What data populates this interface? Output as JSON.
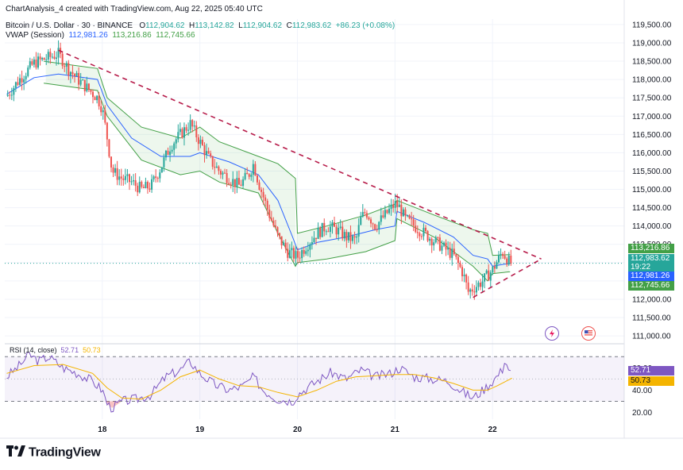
{
  "header": {
    "credit": "ChartAnalysis_4 created with TradingView.com, Aug 22, 2025 05:40 UTC",
    "symbol": "Bitcoin / U.S. Dollar · 30 · BINANCE",
    "open_label": "O",
    "open": "112,904.62",
    "high_label": "H",
    "high": "113,142.82",
    "low_label": "L",
    "low": "112,904.62",
    "close_label": "C",
    "close": "112,983.62",
    "change": "+86.23 (+0.08%)",
    "vwap_label": "VWAP (Session)",
    "vwap": "112,981.26",
    "vwap_upper": "113,216.86",
    "vwap_lower": "112,745.66"
  },
  "price_tags": {
    "upper": "113,216.86",
    "close": "112,983.62",
    "countdown": "19:22",
    "vwap": "112,981.26",
    "lower": "112,745.66"
  },
  "rsi_header": {
    "label": "RSI (14, close)",
    "value": "52.71",
    "ma": "50.73"
  },
  "rsi_tags": {
    "value": "52.71",
    "ma": "50.73"
  },
  "logo": "TradingView",
  "colors": {
    "up": "#26a69a",
    "down": "#ef5350",
    "vwap": "#2962ff",
    "band": "#43a047",
    "trend": "#b71c4a",
    "rsi": "#7e57c2",
    "rsi_ma": "#f4b400"
  },
  "chart_data": [
    {
      "type": "candlestick",
      "title": "Bitcoin / U.S. Dollar · 30 · BINANCE",
      "x_ticks": [
        "18",
        "19",
        "20",
        "21",
        "22"
      ],
      "y_ticks": [
        "111,000.00",
        "111,500.00",
        "112,000.00",
        "112,500.00",
        "113,000.00",
        "113,500.00",
        "114,000.00",
        "114,500.00",
        "115,000.00",
        "115,500.00",
        "116,000.00",
        "116,500.00",
        "117,000.00",
        "117,500.00",
        "118,000.00",
        "118,500.00",
        "119,000.00",
        "119,500.00"
      ],
      "ylim": [
        110850,
        119650
      ],
      "xlim": [
        17.0,
        23.35
      ],
      "grid": true,
      "close_path": [
        [
          17.02,
          117.55
        ],
        [
          17.15,
          118.0
        ],
        [
          17.3,
          118.45
        ],
        [
          17.45,
          118.6
        ],
        [
          17.55,
          118.7
        ],
        [
          17.65,
          118.3
        ],
        [
          17.75,
          118.0
        ],
        [
          17.85,
          117.75
        ],
        [
          17.95,
          117.5
        ],
        [
          18.0,
          117.2
        ],
        [
          18.05,
          116.4
        ],
        [
          18.1,
          115.5
        ],
        [
          18.2,
          115.3
        ],
        [
          18.3,
          115.2
        ],
        [
          18.4,
          115.0
        ],
        [
          18.5,
          115.1
        ],
        [
          18.6,
          115.6
        ],
        [
          18.7,
          116.2
        ],
        [
          18.8,
          116.5
        ],
        [
          18.9,
          116.8
        ],
        [
          19.0,
          116.3
        ],
        [
          19.1,
          115.8
        ],
        [
          19.2,
          115.5
        ],
        [
          19.3,
          115.3
        ],
        [
          19.4,
          115.1
        ],
        [
          19.5,
          115.4
        ],
        [
          19.55,
          115.7
        ],
        [
          19.6,
          115.2
        ],
        [
          19.7,
          114.4
        ],
        [
          19.8,
          113.7
        ],
        [
          19.9,
          113.3
        ],
        [
          20.0,
          113.15
        ],
        [
          20.1,
          113.5
        ],
        [
          20.2,
          113.8
        ],
        [
          20.3,
          114.0
        ],
        [
          20.4,
          113.9
        ],
        [
          20.5,
          113.7
        ],
        [
          20.6,
          113.6
        ],
        [
          20.65,
          114.2
        ],
        [
          20.7,
          114.4
        ],
        [
          20.8,
          114.0
        ],
        [
          20.9,
          114.3
        ],
        [
          21.0,
          114.6
        ],
        [
          21.05,
          114.5
        ],
        [
          21.1,
          114.2
        ],
        [
          21.2,
          114.0
        ],
        [
          21.3,
          113.8
        ],
        [
          21.4,
          113.6
        ],
        [
          21.5,
          113.4
        ],
        [
          21.6,
          113.2
        ],
        [
          21.7,
          112.7
        ],
        [
          21.75,
          112.2
        ],
        [
          21.8,
          112.3
        ],
        [
          21.9,
          112.5
        ],
        [
          22.0,
          112.8
        ],
        [
          22.1,
          113.3
        ],
        [
          22.18,
          112.98
        ]
      ],
      "vwap_path": [
        [
          17.02,
          117.6
        ],
        [
          17.3,
          118.05
        ],
        [
          17.55,
          118.15
        ],
        [
          17.95,
          118.0
        ],
        [
          18.05,
          117.3
        ],
        [
          18.3,
          116.4
        ],
        [
          18.6,
          115.9
        ],
        [
          18.9,
          115.9
        ],
        [
          19.0,
          116.0
        ],
        [
          19.3,
          115.75
        ],
        [
          19.6,
          115.4
        ],
        [
          19.8,
          114.7
        ],
        [
          19.95,
          113.7
        ],
        [
          20.0,
          113.35
        ],
        [
          20.2,
          113.55
        ],
        [
          20.5,
          113.7
        ],
        [
          20.8,
          113.9
        ],
        [
          21.0,
          114.0
        ],
        [
          21.02,
          114.4
        ],
        [
          21.3,
          114.1
        ],
        [
          21.6,
          113.7
        ],
        [
          21.8,
          113.2
        ],
        [
          21.95,
          113.1
        ],
        [
          22.0,
          112.9
        ],
        [
          22.1,
          112.95
        ],
        [
          22.18,
          112.98
        ]
      ],
      "vwap_upper_path": [
        [
          17.4,
          118.5
        ],
        [
          17.95,
          118.3
        ],
        [
          18.05,
          117.5
        ],
        [
          18.4,
          116.7
        ],
        [
          18.8,
          116.4
        ],
        [
          19.0,
          116.7
        ],
        [
          19.2,
          116.3
        ],
        [
          19.6,
          115.9
        ],
        [
          19.8,
          115.7
        ],
        [
          19.98,
          115.3
        ],
        [
          20.0,
          113.8
        ],
        [
          20.3,
          114.0
        ],
        [
          20.7,
          114.3
        ],
        [
          21.0,
          114.6
        ],
        [
          21.02,
          114.7
        ],
        [
          21.4,
          114.3
        ],
        [
          21.8,
          113.9
        ],
        [
          21.95,
          113.8
        ],
        [
          22.0,
          113.2
        ],
        [
          22.18,
          113.22
        ]
      ],
      "vwap_lower_path": [
        [
          17.4,
          117.9
        ],
        [
          17.95,
          117.7
        ],
        [
          18.05,
          117.0
        ],
        [
          18.4,
          115.8
        ],
        [
          18.8,
          115.4
        ],
        [
          19.0,
          115.5
        ],
        [
          19.2,
          115.2
        ],
        [
          19.6,
          114.9
        ],
        [
          19.8,
          113.8
        ],
        [
          19.98,
          112.9
        ],
        [
          20.0,
          113.0
        ],
        [
          20.3,
          113.1
        ],
        [
          20.7,
          113.3
        ],
        [
          21.0,
          113.6
        ],
        [
          21.02,
          114.2
        ],
        [
          21.4,
          113.7
        ],
        [
          21.8,
          112.9
        ],
        [
          21.95,
          112.5
        ],
        [
          22.0,
          112.7
        ],
        [
          22.18,
          112.75
        ]
      ],
      "trendline_upper": [
        [
          17.55,
          118.8
        ],
        [
          22.5,
          113.1
        ]
      ],
      "trendline_lower": [
        [
          21.8,
          112.05
        ],
        [
          22.5,
          113.1
        ]
      ],
      "last_price": 112983.62
    },
    {
      "type": "line",
      "title": "RSI (14, close)",
      "y_ticks": [
        "20.00",
        "40.00",
        "60.00"
      ],
      "ylim": [
        14,
        78
      ],
      "bands": [
        30,
        70
      ],
      "series": [
        {
          "name": "RSI",
          "points": [
            [
              17.02,
              52
            ],
            [
              17.15,
              62
            ],
            [
              17.25,
              72
            ],
            [
              17.35,
              66
            ],
            [
              17.45,
              70
            ],
            [
              17.6,
              60
            ],
            [
              17.75,
              55
            ],
            [
              17.9,
              48
            ],
            [
              18.0,
              40
            ],
            [
              18.05,
              28
            ],
            [
              18.1,
              24
            ],
            [
              18.2,
              30
            ],
            [
              18.35,
              32
            ],
            [
              18.5,
              36
            ],
            [
              18.65,
              52
            ],
            [
              18.8,
              58
            ],
            [
              18.9,
              66
            ],
            [
              19.0,
              55
            ],
            [
              19.15,
              45
            ],
            [
              19.3,
              40
            ],
            [
              19.45,
              44
            ],
            [
              19.55,
              52
            ],
            [
              19.65,
              40
            ],
            [
              19.8,
              32
            ],
            [
              19.95,
              30
            ],
            [
              20.0,
              36
            ],
            [
              20.2,
              48
            ],
            [
              20.35,
              56
            ],
            [
              20.5,
              50
            ],
            [
              20.65,
              58
            ],
            [
              20.8,
              52
            ],
            [
              20.95,
              55
            ],
            [
              21.05,
              60
            ],
            [
              21.2,
              52
            ],
            [
              21.4,
              50
            ],
            [
              21.55,
              48
            ],
            [
              21.7,
              38
            ],
            [
              21.8,
              33
            ],
            [
              21.9,
              40
            ],
            [
              22.0,
              48
            ],
            [
              22.1,
              58
            ],
            [
              22.12,
              68
            ],
            [
              22.2,
              52.71
            ]
          ]
        },
        {
          "name": "RSI MA",
          "points": [
            [
              17.02,
              55
            ],
            [
              17.3,
              62
            ],
            [
              17.6,
              63
            ],
            [
              17.9,
              55
            ],
            [
              18.05,
              42
            ],
            [
              18.2,
              33
            ],
            [
              18.4,
              32
            ],
            [
              18.6,
              40
            ],
            [
              18.8,
              52
            ],
            [
              19.0,
              58
            ],
            [
              19.2,
              50
            ],
            [
              19.4,
              44
            ],
            [
              19.6,
              43
            ],
            [
              19.8,
              38
            ],
            [
              20.0,
              34
            ],
            [
              20.2,
              40
            ],
            [
              20.4,
              48
            ],
            [
              20.6,
              52
            ],
            [
              20.8,
              53
            ],
            [
              21.0,
              54
            ],
            [
              21.2,
              54
            ],
            [
              21.4,
              51
            ],
            [
              21.6,
              46
            ],
            [
              21.8,
              40
            ],
            [
              21.95,
              40
            ],
            [
              22.05,
              44
            ],
            [
              22.2,
              50.73
            ]
          ]
        }
      ]
    }
  ]
}
